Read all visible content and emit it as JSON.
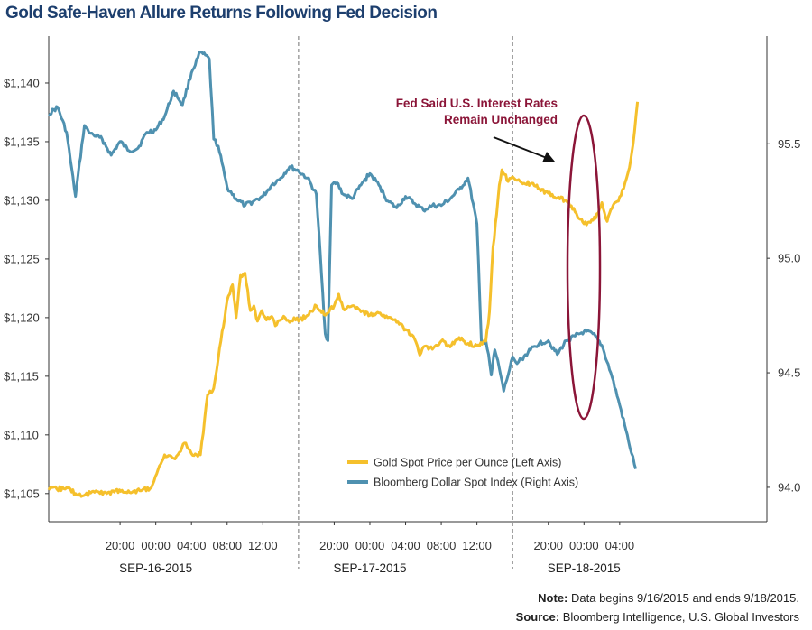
{
  "title": "Gold Safe-Haven Allure Returns Following Fed Decision",
  "chart_data": {
    "type": "line",
    "colors": {
      "gold": "#f5c02c",
      "dollar": "#4f91b0",
      "annotation": "#8b1538",
      "divider": "#888888"
    },
    "left_axis": {
      "ticks": [
        "$1,140",
        "$1,135",
        "$1,130",
        "$1,125",
        "$1,120",
        "$1,115",
        "$1,110",
        "$1,105"
      ],
      "tick_values": [
        1140,
        1135,
        1130,
        1125,
        1120,
        1115,
        1110,
        1105
      ],
      "range": [
        1102.6,
        1144.0
      ]
    },
    "right_axis": {
      "ticks": [
        "95.5",
        "95.0",
        "94.5",
        "94.0"
      ],
      "tick_values": [
        95.5,
        95.0,
        94.5,
        94.0
      ],
      "range": [
        93.85,
        95.97
      ]
    },
    "x_axis": {
      "hour_range": [
        12,
        92.5
      ],
      "ticks": [
        {
          "label": "20:00",
          "hour": 20
        },
        {
          "label": "00:00",
          "hour": 24
        },
        {
          "label": "04:00",
          "hour": 28
        },
        {
          "label": "08:00",
          "hour": 32
        },
        {
          "label": "12:00",
          "hour": 36
        },
        {
          "label": "20:00",
          "hour": 44
        },
        {
          "label": "00:00",
          "hour": 48
        },
        {
          "label": "04:00",
          "hour": 52
        },
        {
          "label": "08:00",
          "hour": 56
        },
        {
          "label": "12:00",
          "hour": 60
        },
        {
          "label": "20:00",
          "hour": 68
        },
        {
          "label": "00:00",
          "hour": 72
        },
        {
          "label": "04:00",
          "hour": 76
        }
      ],
      "dates": [
        {
          "label": "SEP-16-2015",
          "hour": 24
        },
        {
          "label": "SEP-17-2015",
          "hour": 48
        },
        {
          "label": "SEP-18-2015",
          "hour": 72
        }
      ],
      "dividers": [
        40,
        64
      ]
    },
    "series": [
      {
        "name": "Gold Spot Price per Ounce (Left Axis)",
        "axis": "left",
        "x": [
          12,
          14,
          15,
          15.8,
          17,
          18.5,
          19.5,
          20.5,
          21.5,
          22.5,
          23.5,
          25,
          26,
          26.8,
          27.2,
          28,
          29,
          29.8,
          30.5,
          31.3,
          32,
          32.6,
          33,
          33.5,
          34,
          34.6,
          35,
          35.4,
          35.9,
          36.4,
          37,
          37.4,
          38,
          38.5,
          39,
          39.5,
          40,
          41,
          42,
          43,
          44,
          44.5,
          45,
          46,
          47,
          48,
          49,
          50,
          51,
          52,
          53,
          53.6,
          54,
          55,
          56,
          57,
          58,
          59,
          60,
          61,
          61.4,
          61.8,
          62.2,
          62.5,
          62.8,
          63.1,
          63.5,
          64,
          64.5,
          65,
          66,
          67,
          68,
          69,
          70,
          71,
          72,
          73,
          73.6,
          74,
          74.6,
          75,
          75.7,
          76,
          76.6,
          77.1,
          77.5,
          78
        ],
        "values": [
          1105.3,
          1105.5,
          1105.0,
          1104.8,
          1105.2,
          1105.0,
          1105.3,
          1105.1,
          1105.2,
          1105.3,
          1105.5,
          1108.3,
          1108.0,
          1108.6,
          1109.3,
          1108.4,
          1108.3,
          1113.4,
          1114.0,
          1118.0,
          1121.5,
          1122.8,
          1120.0,
          1123.6,
          1123.8,
          1120.6,
          1121.0,
          1119.7,
          1120.6,
          1119.8,
          1120.1,
          1119.3,
          1119.8,
          1120.0,
          1119.6,
          1120.0,
          1119.7,
          1120.2,
          1121.0,
          1120.2,
          1121.0,
          1122.0,
          1120.8,
          1121.0,
          1120.5,
          1120.2,
          1120.4,
          1120.0,
          1119.6,
          1119.0,
          1118.2,
          1116.8,
          1117.5,
          1117.3,
          1118.0,
          1117.5,
          1118.3,
          1117.8,
          1117.6,
          1118.0,
          1120.5,
          1126.0,
          1128.8,
          1131.3,
          1132.6,
          1132.2,
          1131.6,
          1132.0,
          1131.7,
          1131.5,
          1131.4,
          1131.0,
          1130.6,
          1130.2,
          1130.0,
          1129.0,
          1128.0,
          1128.3,
          1128.9,
          1129.8,
          1128.2,
          1129.2,
          1129.9,
          1130.3,
          1131.5,
          1132.8,
          1134.8,
          1138.4
        ]
      },
      {
        "name": "Bloomberg Dollar Spot Index (Right Axis)",
        "axis": "right",
        "x": [
          12,
          13,
          14,
          15,
          16,
          16.5,
          17,
          18,
          19,
          20,
          21,
          22,
          23,
          24,
          25,
          26,
          27,
          28,
          29,
          30,
          30.5,
          31,
          32,
          33,
          34,
          35,
          36,
          37,
          38,
          39,
          40,
          41,
          42,
          43,
          43.3,
          43.7,
          44.3,
          45,
          46,
          47,
          48,
          49,
          50,
          51,
          52,
          53,
          54,
          55,
          56,
          57,
          58,
          59,
          60,
          60.5,
          61,
          61.3,
          61.6,
          62,
          62.5,
          63,
          63.5,
          64,
          64.5,
          65,
          66,
          67,
          68,
          69,
          70,
          71,
          72,
          73,
          74,
          75,
          76,
          77,
          77.8
        ],
        "values": [
          95.63,
          95.66,
          95.55,
          95.27,
          95.58,
          95.55,
          95.54,
          95.52,
          95.45,
          95.51,
          95.47,
          95.48,
          95.55,
          95.56,
          95.62,
          95.73,
          95.67,
          95.81,
          95.9,
          95.87,
          95.52,
          95.49,
          95.31,
          95.26,
          95.23,
          95.25,
          95.27,
          95.32,
          95.35,
          95.4,
          95.38,
          95.35,
          95.28,
          94.67,
          94.64,
          95.32,
          95.33,
          95.28,
          95.26,
          95.32,
          95.37,
          95.32,
          95.25,
          95.22,
          95.27,
          95.24,
          95.21,
          95.23,
          95.23,
          95.26,
          95.3,
          95.35,
          95.15,
          94.63,
          94.64,
          94.58,
          94.49,
          94.6,
          94.52,
          94.42,
          94.49,
          94.57,
          94.54,
          94.56,
          94.6,
          94.63,
          94.64,
          94.58,
          94.64,
          94.66,
          94.68,
          94.67,
          94.62,
          94.5,
          94.36,
          94.2,
          94.08
        ]
      }
    ],
    "annotation": {
      "text_line1": "Fed Said U.S. Interest Rates",
      "text_line2": "Remain Unchanged"
    },
    "legend": {
      "placement": "bottom-right"
    }
  },
  "footer": {
    "note_label": "Note:",
    "note_text": " Data begins 9/16/2015 and ends 9/18/2015.",
    "source_label": "Source:",
    "source_text": " Bloomberg Intelligence, U.S. Global Investors"
  }
}
